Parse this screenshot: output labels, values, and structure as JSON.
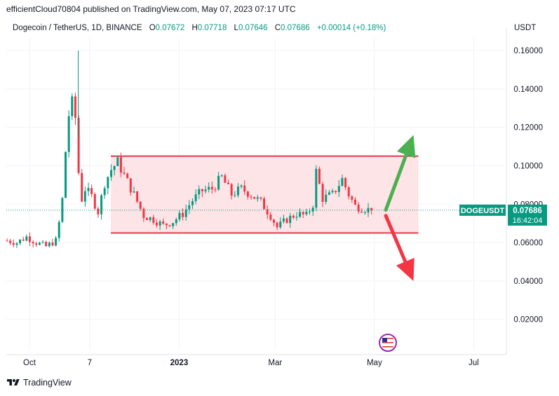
{
  "header": {
    "publish_line": "efficientCloud70804 published on TradingView.com, May 07, 2023 07:17 UTC"
  },
  "legend": {
    "symbol_line": "Dogecoin / TetherUS, 1D, BINANCE",
    "open_label": "O",
    "open_value": "0.07672",
    "high_label": "H",
    "high_value": "0.07718",
    "low_label": "L",
    "low_value": "0.07646",
    "close_label": "C",
    "close_value": "0.07686",
    "change_value": "+0.00014 (+0.18%)",
    "currency": "USDT"
  },
  "price_tag": {
    "symbol": "DOGEUSDT",
    "price": "0.07686",
    "countdown": "16:42:04",
    "color": "#089981"
  },
  "footer": {
    "brand": "TradingView"
  },
  "colors": {
    "up": "#089981",
    "down": "#f23645",
    "range_box_fill": "#fde4e6",
    "range_box_border": "#e8384f",
    "arrow_up": "#4caf50",
    "arrow_down": "#f23645",
    "grid": "#f0f3fa"
  },
  "chart_data": {
    "type": "candlestick",
    "title": "Dogecoin / TetherUS, 1D, BINANCE",
    "y_axis": {
      "ticks": [
        "0.16000",
        "0.14000",
        "0.12000",
        "0.10000",
        "0.08000",
        "0.06000",
        "0.04000",
        "0.02000"
      ],
      "range": [
        0,
        0.1667
      ]
    },
    "x_axis": {
      "ticks": [
        {
          "label": "Oct",
          "date": "2022-10-01"
        },
        {
          "label": "7",
          "date": "2022-11-07"
        },
        {
          "label": "2023",
          "date": "2023-01-01"
        },
        {
          "label": "Mar",
          "date": "2023-03-01"
        },
        {
          "label": "May",
          "date": "2023-05-01"
        },
        {
          "label": "Jul",
          "date": "2023-07-01"
        }
      ]
    },
    "range_box": {
      "start": "2022-11-20",
      "end": "2023-05-28",
      "top": 0.105,
      "bottom": 0.065
    },
    "projections": [
      {
        "direction": "up",
        "from_date": "2023-05-08",
        "from_price": 0.077,
        "to_date": "2023-05-25",
        "to_price": 0.116
      },
      {
        "direction": "down",
        "from_date": "2023-05-08",
        "from_price": 0.074,
        "to_date": "2023-05-25",
        "to_price": 0.04
      }
    ],
    "current_price": 0.07686,
    "ohlc_approx": [
      {
        "date": "2022-09-25",
        "close": 0.061
      },
      {
        "date": "2022-10-01",
        "close": 0.06
      },
      {
        "date": "2022-10-07",
        "close": 0.063
      },
      {
        "date": "2022-10-13",
        "close": 0.06
      },
      {
        "date": "2022-10-19",
        "close": 0.058
      },
      {
        "date": "2022-10-25",
        "close": 0.061
      },
      {
        "date": "2022-10-28",
        "close": 0.075
      },
      {
        "date": "2022-10-30",
        "close": 0.09
      },
      {
        "date": "2022-11-01",
        "close": 0.125
      },
      {
        "date": "2022-11-03",
        "close": 0.128
      },
      {
        "date": "2022-11-05",
        "close": 0.137
      },
      {
        "date": "2022-11-07",
        "close": 0.113
      },
      {
        "date": "2022-11-09",
        "close": 0.08
      },
      {
        "date": "2022-11-12",
        "close": 0.088
      },
      {
        "date": "2022-11-16",
        "close": 0.084
      },
      {
        "date": "2022-11-20",
        "close": 0.076
      },
      {
        "date": "2022-11-24",
        "close": 0.091
      },
      {
        "date": "2022-11-28",
        "close": 0.098
      },
      {
        "date": "2022-12-02",
        "close": 0.102
      },
      {
        "date": "2022-12-06",
        "close": 0.095
      },
      {
        "date": "2022-12-12",
        "close": 0.085
      },
      {
        "date": "2022-12-18",
        "close": 0.074
      },
      {
        "date": "2022-12-24",
        "close": 0.072
      },
      {
        "date": "2022-12-30",
        "close": 0.069
      },
      {
        "date": "2023-01-05",
        "close": 0.071
      },
      {
        "date": "2023-01-11",
        "close": 0.075
      },
      {
        "date": "2023-01-17",
        "close": 0.082
      },
      {
        "date": "2023-01-23",
        "close": 0.087
      },
      {
        "date": "2023-01-29",
        "close": 0.088
      },
      {
        "date": "2023-02-04",
        "close": 0.094
      },
      {
        "date": "2023-02-10",
        "close": 0.085
      },
      {
        "date": "2023-02-16",
        "close": 0.088
      },
      {
        "date": "2023-02-22",
        "close": 0.085
      },
      {
        "date": "2023-02-28",
        "close": 0.081
      },
      {
        "date": "2023-03-06",
        "close": 0.074
      },
      {
        "date": "2023-03-10",
        "close": 0.068
      },
      {
        "date": "2023-03-16",
        "close": 0.072
      },
      {
        "date": "2023-03-22",
        "close": 0.075
      },
      {
        "date": "2023-03-28",
        "close": 0.074
      },
      {
        "date": "2023-04-01",
        "close": 0.08
      },
      {
        "date": "2023-04-03",
        "close": 0.097
      },
      {
        "date": "2023-04-07",
        "close": 0.083
      },
      {
        "date": "2023-04-13",
        "close": 0.085
      },
      {
        "date": "2023-04-19",
        "close": 0.093
      },
      {
        "date": "2023-04-23",
        "close": 0.085
      },
      {
        "date": "2023-04-27",
        "close": 0.079
      },
      {
        "date": "2023-05-01",
        "close": 0.078
      },
      {
        "date": "2023-05-07",
        "close": 0.07686
      }
    ]
  }
}
